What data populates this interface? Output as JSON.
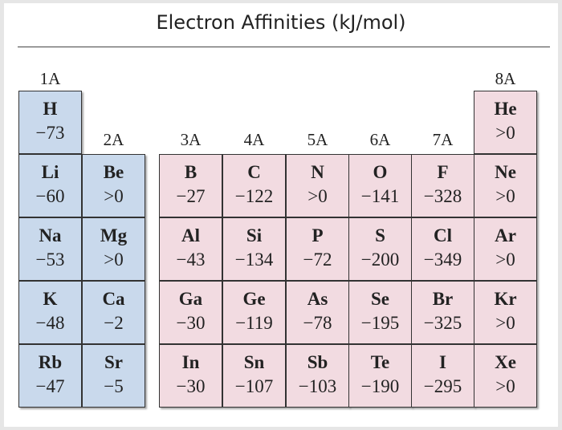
{
  "title": "Electron Affinities (kJ/mol)",
  "groups": [
    {
      "label": "1A",
      "elements": [
        {
          "symbol": "H",
          "value": "−73"
        },
        {
          "symbol": "Li",
          "value": "−60"
        },
        {
          "symbol": "Na",
          "value": "−53"
        },
        {
          "symbol": "K",
          "value": "−48"
        },
        {
          "symbol": "Rb",
          "value": "−47"
        }
      ]
    },
    {
      "label": "2A",
      "elements": [
        {
          "symbol": "Be",
          "value": ">0"
        },
        {
          "symbol": "Mg",
          "value": ">0"
        },
        {
          "symbol": "Ca",
          "value": "−2"
        },
        {
          "symbol": "Sr",
          "value": "−5"
        }
      ]
    },
    {
      "label": "3A",
      "elements": [
        {
          "symbol": "B",
          "value": "−27"
        },
        {
          "symbol": "Al",
          "value": "−43"
        },
        {
          "symbol": "Ga",
          "value": "−30"
        },
        {
          "symbol": "In",
          "value": "−30"
        }
      ]
    },
    {
      "label": "4A",
      "elements": [
        {
          "symbol": "C",
          "value": "−122"
        },
        {
          "symbol": "Si",
          "value": "−134"
        },
        {
          "symbol": "Ge",
          "value": "−119"
        },
        {
          "symbol": "Sn",
          "value": "−107"
        }
      ]
    },
    {
      "label": "5A",
      "elements": [
        {
          "symbol": "N",
          "value": ">0"
        },
        {
          "symbol": "P",
          "value": "−72"
        },
        {
          "symbol": "As",
          "value": "−78"
        },
        {
          "symbol": "Sb",
          "value": "−103"
        }
      ]
    },
    {
      "label": "6A",
      "elements": [
        {
          "symbol": "O",
          "value": "−141"
        },
        {
          "symbol": "S",
          "value": "−200"
        },
        {
          "symbol": "Se",
          "value": "−195"
        },
        {
          "symbol": "Te",
          "value": "−190"
        }
      ]
    },
    {
      "label": "7A",
      "elements": [
        {
          "symbol": "F",
          "value": "−328"
        },
        {
          "symbol": "Cl",
          "value": "−349"
        },
        {
          "symbol": "Br",
          "value": "−325"
        },
        {
          "symbol": "I",
          "value": "−295"
        }
      ]
    },
    {
      "label": "8A",
      "elements": [
        {
          "symbol": "He",
          "value": ">0"
        },
        {
          "symbol": "Ne",
          "value": ">0"
        },
        {
          "symbol": "Ar",
          "value": ">0"
        },
        {
          "symbol": "Kr",
          "value": ">0"
        },
        {
          "symbol": "Xe",
          "value": ">0"
        }
      ]
    }
  ]
}
